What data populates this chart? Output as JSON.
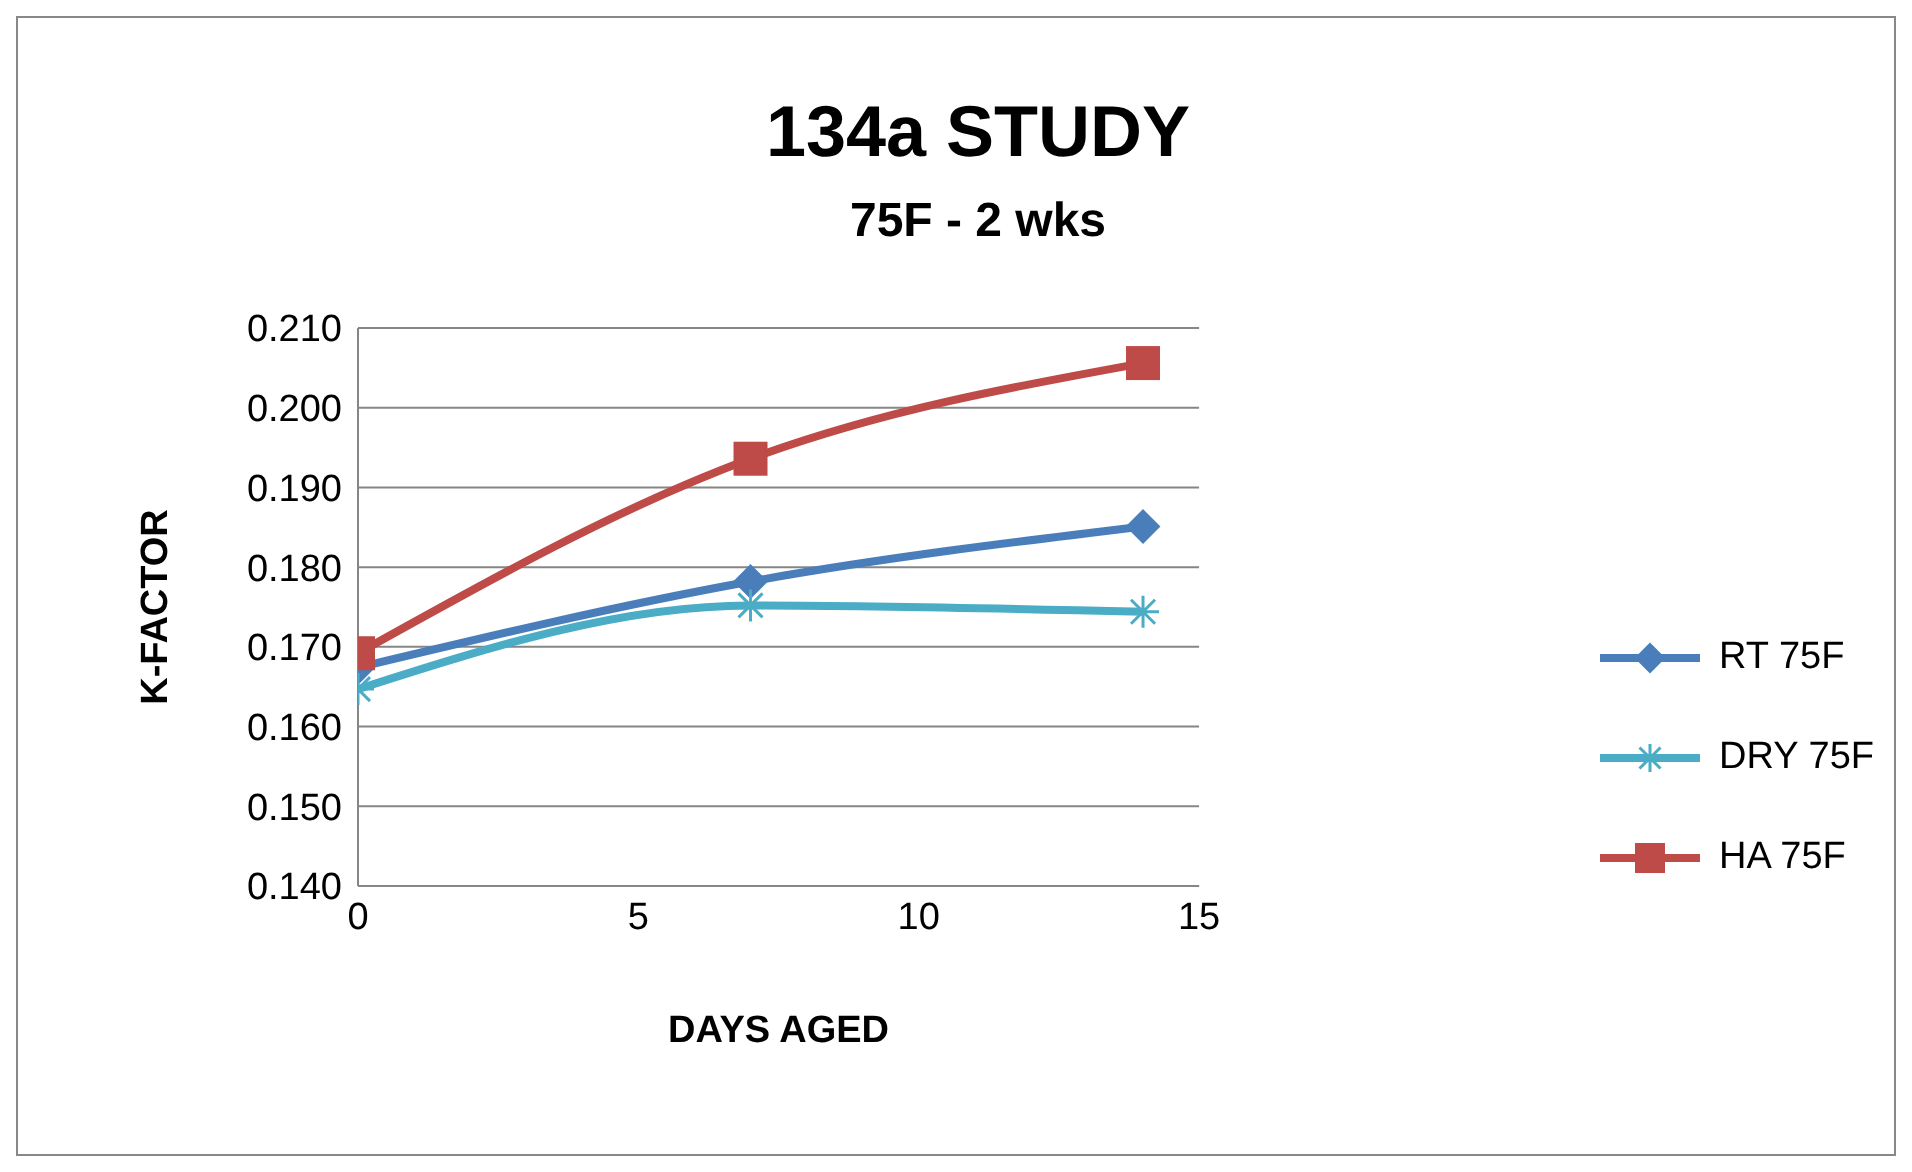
{
  "chart_data": {
    "type": "line",
    "title": "134a STUDY",
    "subtitle": "75F - 2 wks",
    "xlabel": "DAYS AGED",
    "ylabel": "K-FACTOR",
    "x": [
      0,
      7,
      14
    ],
    "series": [
      {
        "name": "RT 75F",
        "color": "#4a7ebb",
        "marker": "diamond",
        "values": [
          0.1674,
          0.1782,
          0.1851
        ]
      },
      {
        "name": "DRY 75F",
        "color": "#4bacc6",
        "marker": "cross",
        "values": [
          0.1647,
          0.1752,
          0.1744
        ]
      },
      {
        "name": "HA 75F",
        "color": "#be4b48",
        "marker": "square",
        "values": [
          0.1692,
          0.1936,
          0.2056
        ]
      }
    ],
    "xlim": [
      0,
      15
    ],
    "xticks": [
      0,
      5,
      10,
      15
    ],
    "ylim": [
      0.14,
      0.21
    ],
    "yticks": [
      {
        "value": 0.14,
        "label": "0.140"
      },
      {
        "value": 0.15,
        "label": "0.150"
      },
      {
        "value": 0.16,
        "label": "0.160"
      },
      {
        "value": 0.17,
        "label": "0.170"
      },
      {
        "value": 0.18,
        "label": "0.180"
      },
      {
        "value": 0.19,
        "label": "0.190"
      },
      {
        "value": 0.2,
        "label": "0.200"
      },
      {
        "value": 0.21,
        "label": "0.210"
      }
    ],
    "grid": "y",
    "legend": "right",
    "line_style": "solid"
  }
}
